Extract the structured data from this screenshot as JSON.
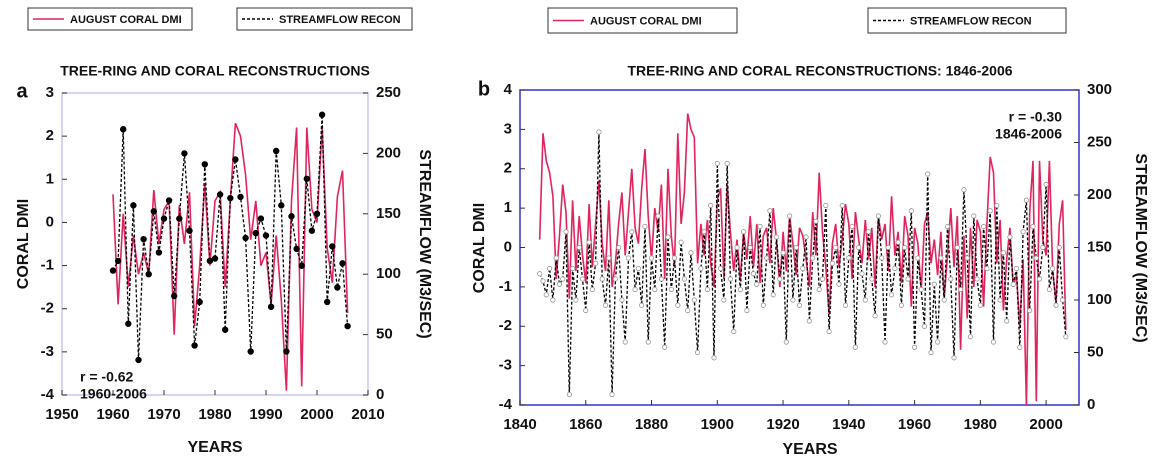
{
  "chart_data": [
    {
      "type": "line",
      "panel_label": "a",
      "title": "TREE-RING AND CORAL RECONSTRUCTIONS",
      "xlabel": "YEARS",
      "ylabel": "CORAL DMI",
      "y2label": "STREAMFLOW (M3/SEC)",
      "annotations": [
        "r = -0.62",
        "1960-2006"
      ],
      "annotation_color": "#e8122c",
      "frame_color": "#c8c8f0",
      "xlim": [
        1950,
        2010
      ],
      "xticks": [
        1950,
        1960,
        1970,
        1980,
        1990,
        2000,
        2010
      ],
      "ylim": [
        -4,
        3
      ],
      "yticks": [
        -4,
        -3,
        -2,
        -1,
        0,
        1,
        2,
        3
      ],
      "y2lim": [
        0,
        250
      ],
      "y2ticks": [
        0,
        50,
        100,
        150,
        200,
        250
      ],
      "x": [
        1960,
        1961,
        1962,
        1963,
        1964,
        1965,
        1966,
        1967,
        1968,
        1969,
        1970,
        1971,
        1972,
        1973,
        1974,
        1975,
        1976,
        1977,
        1978,
        1979,
        1980,
        1981,
        1982,
        1983,
        1984,
        1985,
        1986,
        1987,
        1988,
        1989,
        1990,
        1991,
        1992,
        1993,
        1994,
        1995,
        1996,
        1997,
        1998,
        1999,
        2000,
        2001,
        2002,
        2003,
        2004,
        2005,
        2006
      ],
      "series": [
        {
          "name": "AUGUST CORAL DMI",
          "color": "#e0245e",
          "values": [
            0.65,
            -1.9,
            0.2,
            -1.5,
            -0.3,
            -1.2,
            -0.7,
            -1.2,
            0.75,
            -0.5,
            0.3,
            0.5,
            -2.6,
            0.4,
            -0.5,
            0.7,
            -2.4,
            -1.0,
            0.9,
            -1.0,
            0.5,
            0.7,
            -1.5,
            0.5,
            2.3,
            2.0,
            1.1,
            -0.4,
            0.5,
            -1.0,
            -0.7,
            -1.9,
            -0.3,
            -1.8,
            -3.9,
            0.5,
            2.2,
            -3.8,
            2.2,
            0.3,
            0.0,
            2.2,
            -0.6,
            -1.4,
            0.6,
            1.2,
            -2.1
          ]
        },
        {
          "name": "STREAMFLOW RECON",
          "color": "#000000",
          "axis": "y2",
          "values": [
            103,
            111,
            220,
            59,
            157,
            29,
            129,
            100,
            152,
            118,
            146,
            161,
            82,
            146,
            200,
            136,
            41,
            77,
            191,
            111,
            113,
            166,
            54,
            163,
            195,
            164,
            130,
            36,
            134,
            146,
            132,
            73,
            202,
            157,
            36,
            148,
            121,
            107,
            179,
            136,
            150,
            232,
            77,
            123,
            89,
            109,
            57
          ]
        }
      ]
    },
    {
      "type": "line",
      "panel_label": "b",
      "title": "TREE-RING AND CORAL RECONSTRUCTIONS: 1846-2006",
      "xlabel": "YEARS",
      "ylabel": "CORAL DMI",
      "y2label": "STREAMFLOW (M3/SEC)",
      "annotations": [
        "r = -0.30",
        "1846-2006"
      ],
      "annotation_color": "#e0245e",
      "frame_color": "#3333cc",
      "xlim": [
        1840,
        2010
      ],
      "xticks": [
        1840,
        1860,
        1880,
        1900,
        1920,
        1940,
        1960,
        1980,
        2000
      ],
      "ylim": [
        -4,
        4
      ],
      "yticks": [
        -4,
        -3,
        -2,
        -1,
        0,
        1,
        2,
        3,
        4
      ],
      "y2lim": [
        0,
        300
      ],
      "y2ticks": [
        0,
        50,
        100,
        150,
        200,
        250,
        300
      ],
      "x": [
        1846,
        1847,
        1848,
        1849,
        1850,
        1851,
        1852,
        1853,
        1854,
        1855,
        1856,
        1857,
        1858,
        1859,
        1860,
        1861,
        1862,
        1863,
        1864,
        1865,
        1866,
        1867,
        1868,
        1869,
        1870,
        1871,
        1872,
        1873,
        1874,
        1875,
        1876,
        1877,
        1878,
        1879,
        1880,
        1881,
        1882,
        1883,
        1884,
        1885,
        1886,
        1887,
        1888,
        1889,
        1890,
        1891,
        1892,
        1893,
        1894,
        1895,
        1896,
        1897,
        1898,
        1899,
        1900,
        1901,
        1902,
        1903,
        1904,
        1905,
        1906,
        1907,
        1908,
        1909,
        1910,
        1911,
        1912,
        1913,
        1914,
        1915,
        1916,
        1917,
        1918,
        1919,
        1920,
        1921,
        1922,
        1923,
        1924,
        1925,
        1926,
        1927,
        1928,
        1929,
        1930,
        1931,
        1932,
        1933,
        1934,
        1935,
        1936,
        1937,
        1938,
        1939,
        1940,
        1941,
        1942,
        1943,
        1944,
        1945,
        1946,
        1947,
        1948,
        1949,
        1950,
        1951,
        1952,
        1953,
        1954,
        1955,
        1956,
        1957,
        1958,
        1959,
        1960,
        1961,
        1962,
        1963,
        1964,
        1965,
        1966,
        1967,
        1968,
        1969,
        1970,
        1971,
        1972,
        1973,
        1974,
        1975,
        1976,
        1977,
        1978,
        1979,
        1980,
        1981,
        1982,
        1983,
        1984,
        1985,
        1986,
        1987,
        1988,
        1989,
        1990,
        1991,
        1992,
        1993,
        1994,
        1995,
        1996,
        1997,
        1998,
        1999,
        2000,
        2001,
        2002,
        2003,
        2004,
        2005,
        2006
      ],
      "series": [
        {
          "name": "AUGUST CORAL DMI",
          "color": "#e0245e",
          "values": [
            0.2,
            2.9,
            2.2,
            1.9,
            1.3,
            -0.8,
            0.3,
            1.6,
            0.9,
            -1.3,
            1.2,
            -0.6,
            0.8,
            -0.2,
            -0.9,
            1.1,
            -0.5,
            0.6,
            1.7,
            0.1,
            -0.6,
            1.2,
            -1.0,
            -0.4,
            0.6,
            1.4,
            -0.2,
            0.9,
            2.0,
            0.5,
            0.1,
            1.5,
            2.5,
            0.8,
            -0.3,
            1.0,
            0.4,
            1.6,
            -0.8,
            2.0,
            0.3,
            -0.5,
            2.9,
            0.6,
            1.4,
            3.4,
            3.0,
            2.8,
            -0.4,
            0.6,
            -0.2,
            0.7,
            -0.4,
            -1.0,
            1.2,
            1.5,
            -0.8,
            1.6,
            0.4,
            -0.6,
            0.2,
            -0.8,
            0.4,
            -0.3,
            0.8,
            -0.5,
            0.6,
            -0.9,
            0.3,
            0.5,
            -0.4,
            1.0,
            0.2,
            -1.0,
            0.4,
            -0.6,
            0.8,
            0.1,
            -0.7,
            0.5,
            0.3,
            -0.3,
            -1.0,
            0.9,
            -0.2,
            1.9,
            0.4,
            -0.5,
            -1.7,
            0.1,
            0.6,
            -0.5,
            0.2,
            1.1,
            0.6,
            -0.8,
            0.9,
            0.2,
            -0.4,
            0.7,
            -0.3,
            0.5,
            -1.0,
            0.8,
            0.2,
            0.6,
            -0.6,
            1.3,
            -0.2,
            0.4,
            -0.9,
            0.8,
            0.3,
            -1.5,
            0.5,
            0.1,
            -1.1,
            0.6,
            0.9,
            -0.4,
            0.2,
            -0.7,
            0.4,
            -1.3,
            -0.2,
            1.0,
            -0.5,
            0.8,
            -2.6,
            0.3,
            -1.8,
            0.5,
            -1.0,
            0.7,
            0.4,
            -1.5,
            0.6,
            2.3,
            1.9,
            -0.4,
            0.7,
            -1.6,
            -0.3,
            0.5,
            -1.0,
            -0.7,
            -2.0,
            -0.3,
            -4.0,
            0.9,
            2.2,
            -3.9,
            2.2,
            0.2,
            -0.2,
            2.2,
            -0.6,
            -1.4,
            0.6,
            1.2,
            -2.1
          ]
        },
        {
          "name": "STREAMFLOW RECON",
          "color": "#000000",
          "axis": "y2",
          "values": [
            125,
            118,
            105,
            130,
            100,
            140,
            115,
            120,
            165,
            10,
            130,
            100,
            150,
            120,
            90,
            155,
            110,
            135,
            260,
            120,
            95,
            140,
            10,
            120,
            150,
            100,
            60,
            140,
            165,
            110,
            130,
            95,
            170,
            60,
            140,
            110,
            180,
            120,
            55,
            160,
            110,
            140,
            95,
            155,
            120,
            90,
            145,
            100,
            50,
            130,
            165,
            110,
            190,
            45,
            230,
            130,
            100,
            230,
            120,
            70,
            150,
            110,
            165,
            90,
            150,
            125,
            115,
            170,
            95,
            140,
            185,
            105,
            160,
            120,
            145,
            60,
            180,
            100,
            150,
            95,
            130,
            160,
            80,
            140,
            175,
            110,
            120,
            190,
            70,
            135,
            150,
            115,
            190,
            95,
            140,
            170,
            55,
            150,
            125,
            100,
            165,
            120,
            85,
            180,
            140,
            60,
            150,
            105,
            130,
            155,
            95,
            150,
            120,
            185,
            55,
            140,
            110,
            75,
            220,
            50,
            115,
            60,
            140,
            100,
            170,
            120,
            45,
            150,
            110,
            205,
            140,
            65,
            180,
            120,
            95,
            170,
            130,
            185,
            60,
            190,
            100,
            145,
            80,
            160,
            115,
            130,
            55,
            165,
            195,
            90,
            170,
            140,
            120,
            150,
            210,
            110,
            130,
            95,
            150,
            100,
            65
          ]
        }
      ]
    }
  ]
}
